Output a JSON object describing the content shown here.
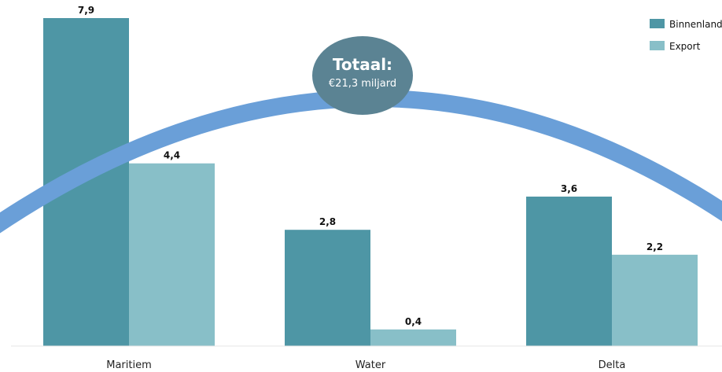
{
  "chart_data": {
    "type": "bar",
    "categories": [
      "Maritiem",
      "Water",
      "Delta"
    ],
    "series": [
      {
        "name": "Binnenland",
        "values": [
          7.9,
          2.8,
          3.6
        ],
        "labels": [
          "7,9",
          "2,8",
          "3,6"
        ],
        "color": "#4e96a5"
      },
      {
        "name": "Export",
        "values": [
          4.4,
          0.4,
          2.2
        ],
        "labels": [
          "4,4",
          "0,4",
          "2,2"
        ],
        "color": "#88bfc8"
      }
    ],
    "ylim": [
      0,
      8
    ],
    "grid": false,
    "legend": "top-right",
    "title": "",
    "xlabel": "",
    "ylabel": ""
  },
  "total": {
    "title": "Totaal:",
    "subtitle": "€21,3 miljard",
    "bubble_color": "#5b8393",
    "arc_color": "#6a9fd8"
  }
}
